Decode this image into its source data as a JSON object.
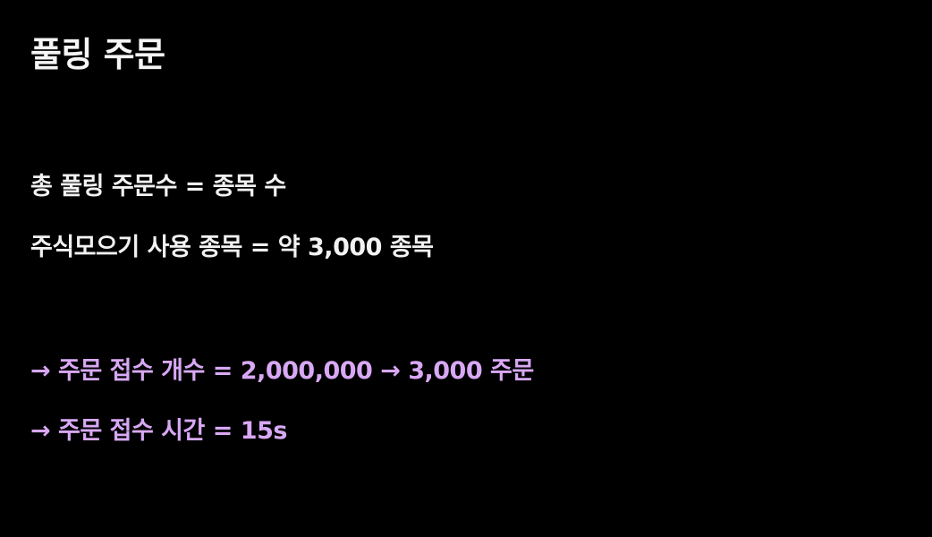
{
  "slide": {
    "title": "풀링 주문",
    "facts": [
      "총 풀링 주문수 = 종목 수",
      "주식모으기 사용 종목 = 약 3,000 종목"
    ],
    "results": [
      "→ 주문 접수 개수 = 2,000,000 → 3,000 주문",
      "→ 주문 접수 시간 = 15s"
    ]
  },
  "colors": {
    "background": "#000000",
    "text": "#f2f2f2",
    "accent": "#d8a8f4"
  }
}
